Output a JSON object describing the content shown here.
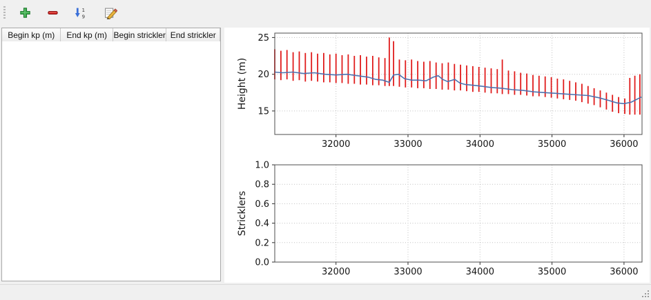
{
  "toolbar": {
    "buttons": [
      {
        "name": "add-row",
        "icon": "plus-icon",
        "color": "#3faa4e"
      },
      {
        "name": "remove-row",
        "icon": "minus-icon",
        "color": "#cc2222"
      },
      {
        "name": "sort-rows",
        "icon": "sort-1-9-icon",
        "color": "#3a6fd8"
      },
      {
        "name": "edit-row",
        "icon": "edit-pencil-icon",
        "color": "#e8b33d"
      }
    ]
  },
  "table": {
    "columns": [
      "Begin kp (m)",
      "End kp (m)",
      "Begin strickler",
      "End strickler"
    ],
    "rows": []
  },
  "chart_data": [
    {
      "type": "line",
      "title": "",
      "ylabel": "Height (m)",
      "xlabel": "",
      "xlim": [
        31150,
        36250
      ],
      "ylim": [
        11.8,
        25.6
      ],
      "xticks": [
        32000,
        33000,
        34000,
        35000,
        36000
      ],
      "xtick_labels": [
        "32000",
        "33000",
        "34000",
        "35000",
        "36000"
      ],
      "yticks": [
        15,
        20,
        25
      ],
      "ytick_labels": [
        "15",
        "20",
        "25"
      ],
      "grid": true,
      "bar_color": "#e01b1b",
      "line_color": "#4c72b0",
      "series_note": "red vertical min-max bars per profile with blue mean-height line",
      "bars": [
        [
          31150,
          19.3,
          23.4
        ],
        [
          31235,
          19.2,
          23.2
        ],
        [
          31320,
          19.3,
          23.3
        ],
        [
          31405,
          19.1,
          23.0
        ],
        [
          31490,
          19.2,
          23.1
        ],
        [
          31575,
          19.0,
          22.9
        ],
        [
          31660,
          19.1,
          23.0
        ],
        [
          31745,
          19.0,
          22.8
        ],
        [
          31830,
          18.9,
          22.9
        ],
        [
          31915,
          18.9,
          22.7
        ],
        [
          32000,
          18.8,
          22.8
        ],
        [
          32085,
          18.8,
          22.6
        ],
        [
          32170,
          18.7,
          22.7
        ],
        [
          32255,
          18.7,
          22.5
        ],
        [
          32340,
          18.6,
          22.6
        ],
        [
          32425,
          18.6,
          22.4
        ],
        [
          32510,
          18.5,
          22.5
        ],
        [
          32595,
          18.5,
          22.3
        ],
        [
          32680,
          18.4,
          22.2
        ],
        [
          32740,
          18.4,
          25.0
        ],
        [
          32800,
          18.4,
          24.5
        ],
        [
          32880,
          18.3,
          22.0
        ],
        [
          32965,
          18.2,
          21.9
        ],
        [
          33050,
          18.2,
          22.0
        ],
        [
          33135,
          18.1,
          21.8
        ],
        [
          33220,
          18.1,
          21.7
        ],
        [
          33305,
          18.0,
          21.8
        ],
        [
          33390,
          18.0,
          21.6
        ],
        [
          33475,
          17.9,
          21.5
        ],
        [
          33560,
          17.9,
          21.6
        ],
        [
          33645,
          17.8,
          21.4
        ],
        [
          33730,
          17.8,
          21.3
        ],
        [
          33815,
          17.7,
          21.2
        ],
        [
          33900,
          17.6,
          21.1
        ],
        [
          33985,
          17.6,
          21.0
        ],
        [
          34070,
          17.5,
          20.9
        ],
        [
          34155,
          17.4,
          20.8
        ],
        [
          34240,
          17.4,
          20.7
        ],
        [
          34310,
          17.3,
          22.0
        ],
        [
          34395,
          17.3,
          20.5
        ],
        [
          34480,
          17.2,
          20.4
        ],
        [
          34565,
          17.2,
          20.2
        ],
        [
          34650,
          17.1,
          20.1
        ],
        [
          34735,
          17.0,
          19.9
        ],
        [
          34820,
          17.0,
          19.8
        ],
        [
          34905,
          16.9,
          19.7
        ],
        [
          34990,
          16.8,
          19.6
        ],
        [
          35075,
          16.7,
          19.4
        ],
        [
          35160,
          16.6,
          19.3
        ],
        [
          35245,
          16.5,
          19.1
        ],
        [
          35330,
          16.4,
          18.9
        ],
        [
          35415,
          16.2,
          18.7
        ],
        [
          35500,
          16.0,
          18.4
        ],
        [
          35585,
          15.8,
          18.1
        ],
        [
          35670,
          15.5,
          17.8
        ],
        [
          35755,
          15.2,
          17.5
        ],
        [
          35840,
          14.9,
          17.2
        ],
        [
          35925,
          14.7,
          16.9
        ],
        [
          36010,
          14.6,
          16.7
        ],
        [
          36080,
          14.5,
          19.5
        ],
        [
          36150,
          14.5,
          19.8
        ],
        [
          36220,
          14.5,
          20.0
        ]
      ],
      "line": [
        [
          31150,
          20.3
        ],
        [
          31260,
          20.2
        ],
        [
          31400,
          20.3
        ],
        [
          31550,
          20.1
        ],
        [
          31700,
          20.2
        ],
        [
          31850,
          20.0
        ],
        [
          32000,
          19.9
        ],
        [
          32150,
          20.0
        ],
        [
          32300,
          19.8
        ],
        [
          32450,
          19.6
        ],
        [
          32550,
          19.3
        ],
        [
          32650,
          19.2
        ],
        [
          32740,
          18.9
        ],
        [
          32800,
          19.9
        ],
        [
          32870,
          20.0
        ],
        [
          32950,
          19.4
        ],
        [
          33050,
          19.2
        ],
        [
          33150,
          19.2
        ],
        [
          33250,
          19.1
        ],
        [
          33350,
          19.6
        ],
        [
          33420,
          19.8
        ],
        [
          33480,
          19.3
        ],
        [
          33550,
          19.0
        ],
        [
          33650,
          19.3
        ],
        [
          33720,
          18.8
        ],
        [
          33800,
          18.6
        ],
        [
          33900,
          18.5
        ],
        [
          34000,
          18.4
        ],
        [
          34150,
          18.2
        ],
        [
          34300,
          18.1
        ],
        [
          34450,
          17.9
        ],
        [
          34600,
          17.8
        ],
        [
          34750,
          17.6
        ],
        [
          34900,
          17.5
        ],
        [
          35050,
          17.4
        ],
        [
          35200,
          17.3
        ],
        [
          35350,
          17.2
        ],
        [
          35500,
          17.1
        ],
        [
          35650,
          16.8
        ],
        [
          35800,
          16.4
        ],
        [
          35900,
          16.1
        ],
        [
          36000,
          16.0
        ],
        [
          36100,
          16.2
        ],
        [
          36240,
          16.9
        ]
      ]
    },
    {
      "type": "line",
      "title": "",
      "ylabel": "Stricklers",
      "xlabel": "",
      "xlim": [
        31150,
        36250
      ],
      "ylim": [
        0,
        1
      ],
      "xticks": [
        32000,
        33000,
        34000,
        35000,
        36000
      ],
      "xtick_labels": [
        "32000",
        "33000",
        "34000",
        "35000",
        "36000"
      ],
      "yticks": [
        0,
        0.2,
        0.4,
        0.6,
        0.8,
        1.0
      ],
      "ytick_labels": [
        "0.0",
        "0.2",
        "0.4",
        "0.6",
        "0.8",
        "1.0"
      ],
      "grid": true,
      "bars": [],
      "line": []
    }
  ]
}
